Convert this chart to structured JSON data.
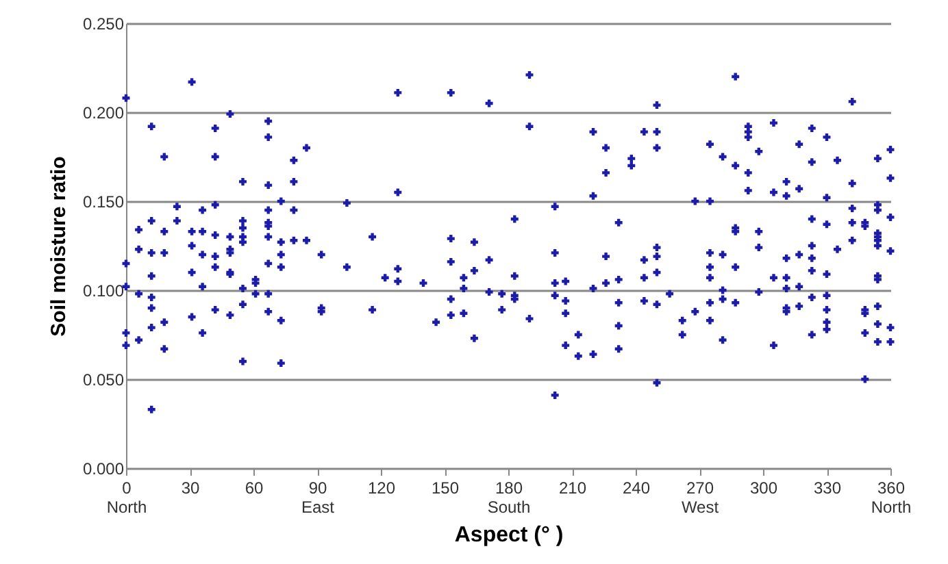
{
  "chart_data": {
    "type": "scatter",
    "xlabel": "Aspect (°  )",
    "ylabel": "Soil moisture ratio",
    "xlim": [
      0,
      360
    ],
    "ylim": [
      0,
      0.25
    ],
    "xticks": [
      {
        "value": 0,
        "label": "0\nNorth"
      },
      30,
      60,
      {
        "value": 90,
        "label": "90\nEast"
      },
      120,
      150,
      {
        "value": 180,
        "label": "180\nSouth"
      },
      210,
      240,
      {
        "value": 270,
        "label": "270\nWest"
      },
      300,
      330,
      {
        "value": 360,
        "label": "360\nNorth"
      }
    ],
    "yticks": [
      {
        "value": 0,
        "label": "0.000"
      },
      {
        "value": 0.05,
        "label": "0.050"
      },
      {
        "value": 0.1,
        "label": "0.100"
      },
      {
        "value": 0.15,
        "label": "0.150"
      },
      {
        "value": 0.2,
        "label": "0.200"
      },
      {
        "value": 0.25,
        "label": "0.250"
      }
    ],
    "grid": "y",
    "marker": "cross",
    "series": [
      {
        "color": "#1c1ca8",
        "x": [
          31,
          0,
          49,
          12,
          42,
          67,
          67,
          85,
          18,
          42,
          79,
          55,
          67,
          79,
          73,
          42,
          24,
          36,
          67,
          79,
          12,
          24,
          55,
          6,
          55,
          67,
          67,
          18,
          31,
          36,
          42,
          67,
          49,
          55,
          55,
          79,
          85,
          73,
          31,
          6,
          49,
          92,
          12,
          18,
          36,
          49,
          42,
          73,
          0,
          67,
          42,
          73,
          31,
          49,
          49,
          12,
          61,
          61,
          0,
          36,
          55,
          6,
          12,
          61,
          67,
          12,
          42,
          55,
          92,
          92,
          67,
          49,
          31,
          18,
          73,
          12,
          0,
          36,
          6,
          0,
          18,
          55,
          73,
          12,
          190,
          128,
          153,
          171,
          190,
          128,
          104,
          183,
          116,
          153,
          164,
          171,
          153,
          104,
          128,
          164,
          122,
          159,
          183,
          128,
          140,
          159,
          171,
          177,
          183,
          183,
          153,
          116,
          177,
          159,
          153,
          190,
          146,
          164,
          287,
          250,
          250,
          220,
          244,
          293,
          293,
          293,
          226,
          250,
          275,
          298,
          281,
          238,
          238,
          287,
          226,
          293,
          293,
          220,
          268,
          275,
          202,
          232,
          287,
          287,
          298,
          298,
          250,
          202,
          275,
          250,
          226,
          281,
          244,
          275,
          287,
          250,
          232,
          244,
          275,
          202,
          207,
          226,
          220,
          298,
          281,
          256,
          202,
          281,
          207,
          244,
          232,
          250,
          275,
          287,
          268,
          207,
          262,
          275,
          232,
          213,
          262,
          281,
          207,
          232,
          213,
          220,
          250,
          202,
          342,
          305,
          323,
          330,
          317,
          360,
          323,
          335,
          354,
          360,
          342,
          311,
          317,
          305,
          311,
          330,
          354,
          354,
          342,
          323,
          360,
          330,
          342,
          348,
          348,
          354,
          354,
          354,
          342,
          323,
          354,
          335,
          360,
          317,
          311,
          323,
          323,
          330,
          305,
          311,
          354,
          354,
          311,
          317,
          323,
          330,
          348,
          348,
          311,
          311,
          317,
          330,
          354,
          330,
          354,
          360,
          330,
          348,
          323,
          305,
          354,
          360,
          348
        ],
        "values": [
          0.217,
          0.208,
          0.199,
          0.192,
          0.191,
          0.195,
          0.186,
          0.18,
          0.175,
          0.175,
          0.173,
          0.161,
          0.159,
          0.161,
          0.15,
          0.148,
          0.147,
          0.145,
          0.145,
          0.145,
          0.139,
          0.139,
          0.139,
          0.134,
          0.135,
          0.138,
          0.136,
          0.133,
          0.133,
          0.133,
          0.131,
          0.13,
          0.13,
          0.13,
          0.127,
          0.128,
          0.128,
          0.127,
          0.125,
          0.123,
          0.123,
          0.12,
          0.121,
          0.121,
          0.12,
          0.121,
          0.119,
          0.12,
          0.115,
          0.115,
          0.113,
          0.113,
          0.11,
          0.11,
          0.109,
          0.108,
          0.106,
          0.104,
          0.102,
          0.102,
          0.101,
          0.098,
          0.096,
          0.098,
          0.098,
          0.09,
          0.089,
          0.092,
          0.09,
          0.088,
          0.088,
          0.086,
          0.085,
          0.082,
          0.083,
          0.079,
          0.076,
          0.076,
          0.072,
          0.069,
          0.067,
          0.06,
          0.059,
          0.033,
          0.221,
          0.211,
          0.211,
          0.205,
          0.192,
          0.155,
          0.149,
          0.14,
          0.13,
          0.129,
          0.127,
          0.117,
          0.116,
          0.113,
          0.112,
          0.111,
          0.107,
          0.107,
          0.108,
          0.105,
          0.104,
          0.101,
          0.099,
          0.098,
          0.097,
          0.095,
          0.095,
          0.089,
          0.089,
          0.087,
          0.086,
          0.084,
          0.082,
          0.073,
          0.22,
          0.204,
          0.189,
          0.189,
          0.189,
          0.192,
          0.189,
          0.186,
          0.18,
          0.18,
          0.182,
          0.178,
          0.175,
          0.174,
          0.17,
          0.17,
          0.166,
          0.166,
          0.156,
          0.153,
          0.15,
          0.15,
          0.147,
          0.138,
          0.135,
          0.133,
          0.133,
          0.124,
          0.124,
          0.121,
          0.121,
          0.119,
          0.119,
          0.12,
          0.117,
          0.113,
          0.113,
          0.11,
          0.106,
          0.107,
          0.107,
          0.104,
          0.105,
          0.104,
          0.101,
          0.099,
          0.1,
          0.098,
          0.097,
          0.095,
          0.094,
          0.094,
          0.093,
          0.092,
          0.093,
          0.093,
          0.088,
          0.087,
          0.083,
          0.083,
          0.08,
          0.075,
          0.075,
          0.072,
          0.069,
          0.067,
          0.063,
          0.064,
          0.048,
          0.041,
          0.206,
          0.194,
          0.191,
          0.186,
          0.182,
          0.179,
          0.172,
          0.173,
          0.174,
          0.163,
          0.16,
          0.161,
          0.157,
          0.155,
          0.153,
          0.152,
          0.148,
          0.145,
          0.146,
          0.14,
          0.141,
          0.137,
          0.138,
          0.138,
          0.136,
          0.132,
          0.13,
          0.128,
          0.128,
          0.125,
          0.125,
          0.123,
          0.122,
          0.12,
          0.118,
          0.118,
          0.111,
          0.109,
          0.107,
          0.107,
          0.108,
          0.106,
          0.101,
          0.102,
          0.096,
          0.097,
          0.089,
          0.087,
          0.09,
          0.088,
          0.091,
          0.089,
          0.091,
          0.082,
          0.081,
          0.079,
          0.078,
          0.076,
          0.075,
          0.069,
          0.071,
          0.071,
          0.05
        ]
      }
    ]
  }
}
